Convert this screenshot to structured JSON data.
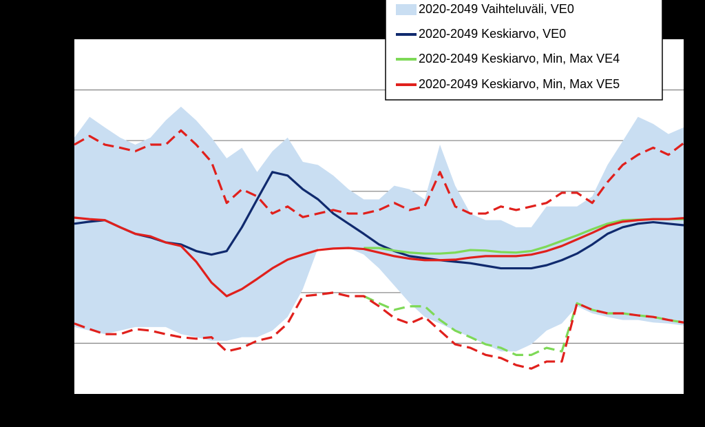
{
  "chart_data": {
    "type": "line",
    "x": [
      0,
      1,
      2,
      3,
      4,
      5,
      6,
      7,
      8,
      9,
      10,
      11,
      12,
      13,
      14,
      15,
      16,
      17,
      18,
      19,
      20,
      21,
      22,
      23,
      24,
      25,
      26,
      27,
      28,
      29,
      30,
      31,
      32,
      33,
      34,
      35,
      36,
      37,
      38,
      39,
      40
    ],
    "xlim": [
      0,
      40
    ],
    "ylim": [
      0,
      70
    ],
    "yticks": [
      10,
      20,
      30,
      40,
      50,
      60
    ],
    "grid": true,
    "band": {
      "name": "2020-2049 Vaihteluväli, VE0",
      "color": "#c9def2",
      "upper": [
        50.6,
        54.7,
        52.6,
        50.6,
        49.2,
        50.6,
        54.0,
        56.7,
        54.0,
        50.6,
        46.5,
        48.6,
        43.8,
        47.9,
        50.6,
        45.8,
        45.2,
        43.1,
        40.4,
        38.4,
        38.4,
        41.1,
        40.4,
        38.4,
        49.2,
        41.1,
        35.6,
        34.3,
        34.3,
        32.9,
        32.9,
        37.0,
        37.0,
        37.0,
        39.0,
        45.2,
        49.9,
        54.7,
        53.3,
        51.3,
        52.6
      ],
      "lower": [
        13.2,
        12.5,
        11.8,
        12.5,
        13.2,
        13.2,
        13.2,
        11.8,
        11.2,
        10.5,
        10.5,
        11.2,
        11.2,
        12.5,
        15.2,
        20.7,
        28.8,
        28.8,
        28.8,
        27.5,
        24.8,
        21.4,
        18.0,
        15.2,
        13.9,
        12.5,
        11.2,
        9.8,
        8.4,
        8.4,
        9.8,
        12.5,
        13.9,
        17.3,
        15.9,
        15.2,
        14.6,
        14.6,
        14.1,
        13.9,
        13.5
      ]
    },
    "series": [
      {
        "name": "2020-2049 Keskiarvo, VE0",
        "color": "#102a6e",
        "values": [
          33.6,
          34.0,
          34.3,
          32.9,
          31.6,
          30.9,
          29.9,
          29.5,
          28.2,
          27.5,
          28.2,
          32.9,
          38.4,
          43.8,
          43.1,
          40.4,
          38.4,
          35.6,
          33.6,
          31.6,
          29.5,
          28.2,
          27.2,
          26.8,
          26.4,
          26.1,
          25.8,
          25.3,
          24.8,
          24.8,
          24.8,
          25.4,
          26.4,
          27.7,
          29.5,
          31.6,
          32.9,
          33.6,
          33.9,
          33.6,
          33.3
        ]
      },
      {
        "name": "2020-2049 Keskiarvo, Min, Max VE4",
        "color": "#7ed957",
        "values": [
          null,
          null,
          null,
          null,
          null,
          null,
          null,
          null,
          null,
          null,
          null,
          null,
          null,
          null,
          null,
          null,
          null,
          null,
          null,
          28.8,
          28.8,
          28.3,
          27.9,
          27.7,
          27.7,
          27.9,
          28.4,
          28.3,
          28.0,
          27.9,
          28.2,
          29.1,
          30.2,
          31.3,
          32.5,
          33.6,
          34.3,
          34.4,
          34.5,
          34.5,
          34.5
        ],
        "min": [
          null,
          null,
          null,
          null,
          null,
          null,
          null,
          null,
          null,
          null,
          null,
          null,
          null,
          null,
          null,
          null,
          null,
          null,
          null,
          19.3,
          17.9,
          16.6,
          17.3,
          17.3,
          14.6,
          12.5,
          11.2,
          9.8,
          9.1,
          7.7,
          7.7,
          9.1,
          8.4,
          17.9,
          16.6,
          15.9,
          15.9,
          15.5,
          15.2,
          14.6,
          14.1
        ]
      },
      {
        "name": "2020-2049 Keskiarvo, Min, Max VE5",
        "color": "#e0201c",
        "values": [
          34.8,
          34.5,
          34.3,
          32.9,
          31.6,
          31.1,
          29.9,
          29.2,
          26.1,
          22.0,
          19.3,
          20.7,
          22.7,
          24.8,
          26.5,
          27.5,
          28.4,
          28.7,
          28.8,
          28.6,
          27.9,
          27.2,
          26.7,
          26.4,
          26.4,
          26.5,
          26.9,
          27.2,
          27.2,
          27.2,
          27.5,
          28.2,
          29.2,
          30.5,
          31.8,
          33.2,
          34.0,
          34.3,
          34.5,
          34.5,
          34.7
        ],
        "max": [
          49.2,
          50.9,
          49.2,
          48.6,
          47.9,
          49.2,
          49.2,
          52.0,
          49.2,
          45.8,
          37.7,
          40.4,
          39.0,
          35.6,
          37.0,
          34.9,
          35.6,
          36.3,
          35.6,
          35.6,
          36.3,
          37.7,
          36.3,
          37.0,
          43.8,
          37.0,
          35.6,
          35.6,
          37.0,
          36.3,
          37.0,
          37.7,
          39.7,
          39.7,
          37.7,
          41.8,
          45.2,
          47.2,
          48.6,
          47.2,
          49.5
        ],
        "min": [
          13.9,
          12.8,
          11.8,
          11.8,
          12.8,
          12.5,
          11.8,
          11.2,
          10.9,
          11.2,
          8.4,
          9.1,
          10.5,
          11.2,
          13.9,
          19.3,
          19.6,
          20.0,
          19.3,
          19.3,
          17.3,
          15.0,
          13.9,
          15.2,
          12.5,
          9.8,
          9.1,
          7.7,
          7.1,
          5.7,
          5.0,
          6.4,
          6.4,
          17.9,
          16.6,
          15.9,
          15.9,
          15.5,
          15.2,
          14.6,
          14.1
        ]
      }
    ]
  }
}
